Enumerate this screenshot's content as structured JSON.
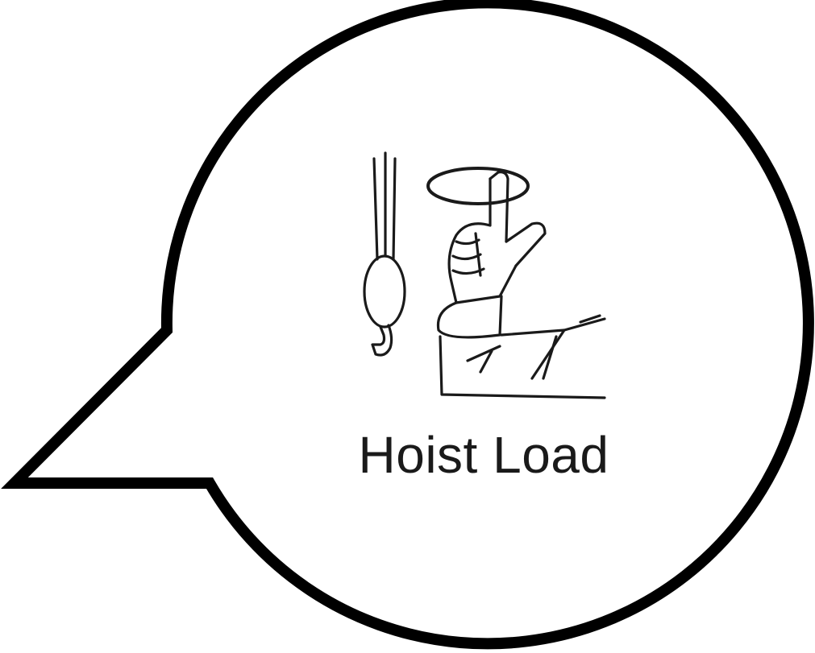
{
  "signal": {
    "label": "Hoist Load"
  },
  "colors": {
    "stroke": "#000000",
    "text": "#1a1a1a",
    "background": "#ffffff"
  },
  "icons": [
    "speech-bubble-icon",
    "hook-load-icon",
    "hand-signal-icon"
  ]
}
